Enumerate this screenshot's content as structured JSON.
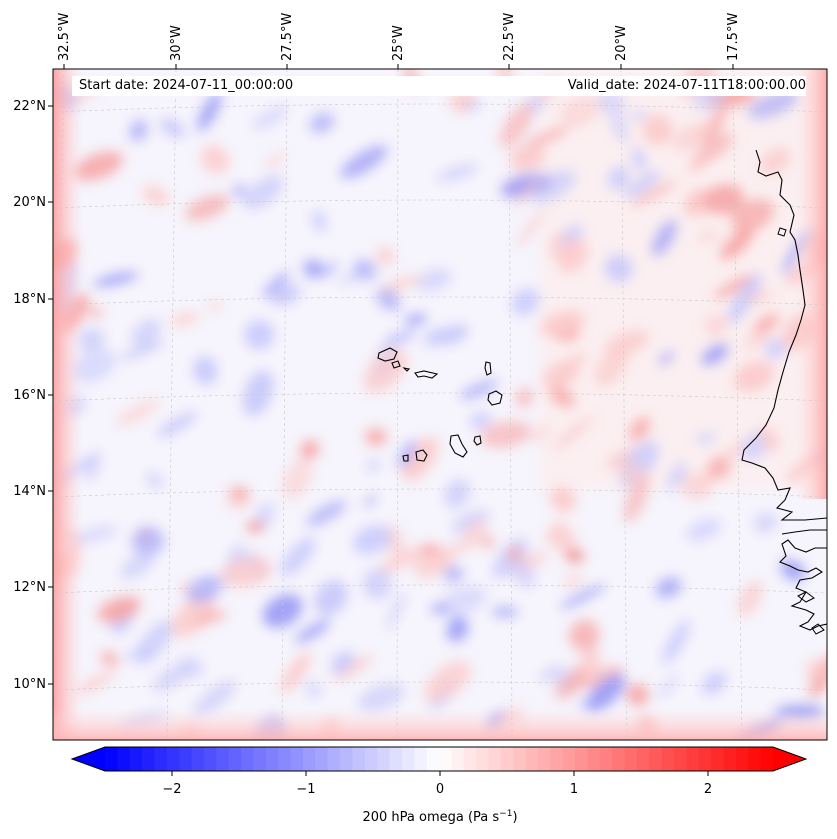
{
  "header": {
    "start_date_label": "Start date: 2024-07-11_00:00:00",
    "valid_date_label": "Valid_date: 2024-07-11T18:00:00.00"
  },
  "map": {
    "lon_labels": [
      "32.5°W",
      "30°W",
      "27.5°W",
      "25°W",
      "22.5°W",
      "20°W",
      "17.5°W"
    ],
    "lat_labels": [
      "22°N",
      "20°N",
      "18°N",
      "16°N",
      "14°N",
      "12°N",
      "10°N"
    ],
    "gridlines": true,
    "coastline_color": "#000000"
  },
  "colorbar": {
    "ticks": [
      "−2",
      "−1",
      "0",
      "1",
      "2"
    ],
    "tick_values": [
      -2,
      -1,
      0,
      1,
      2
    ],
    "range": [
      -2.7,
      2.7
    ],
    "label": "200 hPa omega (Pa s",
    "label_sup": "−1",
    "label_end": ")",
    "color_low": "#0000ff",
    "color_mid": "#ffffff",
    "color_high": "#ff0000",
    "extend": "both"
  }
}
